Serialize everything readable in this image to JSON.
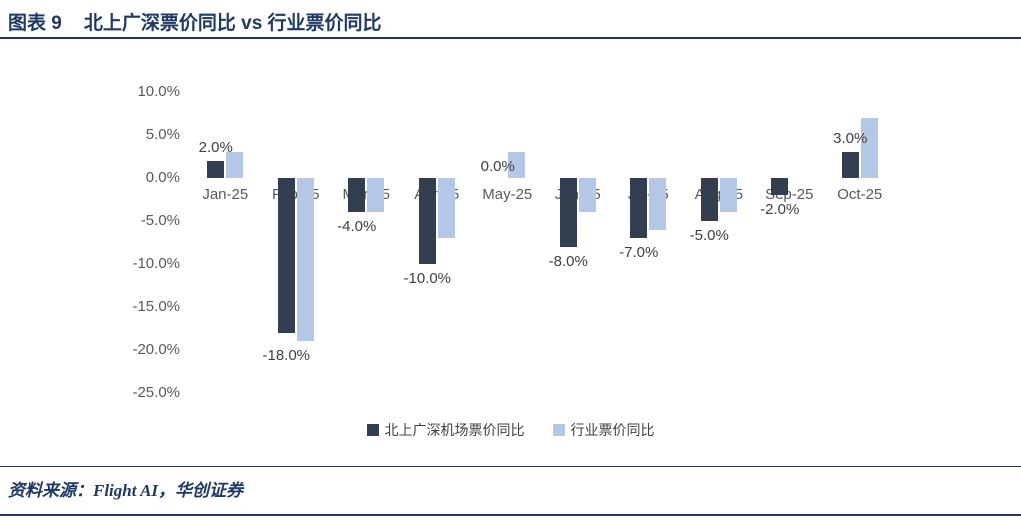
{
  "header": {
    "figure_label": "图表 9",
    "title": "北上广深票价同比 vs 行业票价同比"
  },
  "chart_data": {
    "type": "bar",
    "title": "北上广深票价同比 vs 行业票价同比",
    "categories": [
      "Jan-25",
      "Feb-25",
      "Mar-25",
      "Apr-25",
      "May-25",
      "Jun-25",
      "Jul-25",
      "Aug-25",
      "Sep-25",
      "Oct-25"
    ],
    "series": [
      {
        "name": "北上广深机场票价同比",
        "color": "#333F50",
        "values": [
          2,
          -18,
          -4,
          -10,
          0,
          -8,
          -7,
          -5,
          -2,
          3
        ],
        "data_labels": [
          "2.0%",
          "-18.0%",
          "-4.0%",
          "-10.0%",
          "0.0%",
          "-8.0%",
          "-7.0%",
          "-5.0%",
          "-2.0%",
          "3.0%"
        ]
      },
      {
        "name": "行业票价同比",
        "color": "#B4C7E7",
        "values": [
          3,
          -19,
          -4,
          -7,
          3,
          -4,
          -6,
          -4,
          0,
          7
        ]
      }
    ],
    "ylim": [
      -25,
      10
    ],
    "yticks": [
      10,
      5,
      0,
      -5,
      -10,
      -15,
      -20,
      -25
    ],
    "ytick_labels": [
      "10.0%",
      "5.0%",
      "0.0%",
      "-5.0%",
      "-10.0%",
      "-15.0%",
      "-20.0%",
      "-25.0%"
    ],
    "grid": false,
    "legend_position": "bottom"
  },
  "footer": {
    "source": "资料来源：Flight AI，华创证券"
  },
  "colors": {
    "accent_navy": "#1F3864",
    "dark_series": "#333F50",
    "light_series": "#B4C7E7",
    "axis_text": "#595959",
    "data_label_text": "#404040"
  }
}
